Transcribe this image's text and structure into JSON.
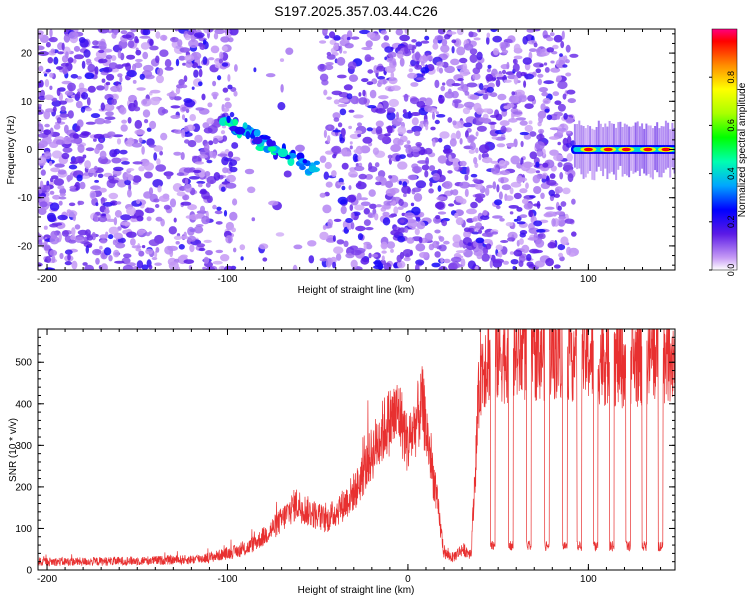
{
  "figure": {
    "title": "S197.2025.357.03.44.C26"
  },
  "chart_data": [
    {
      "type": "heatmap",
      "title": "S197.2025.357.03.44.C26",
      "xlabel": "Height of straight line (km)",
      "ylabel": "Frequency (Hz)",
      "xlim": [
        -205,
        148
      ],
      "ylim": [
        -25,
        25
      ],
      "xticks": [
        -200,
        -100,
        0,
        100
      ],
      "xtick_labels": [
        "-200",
        "-100",
        "0",
        "100"
      ],
      "yticks": [
        -20,
        -10,
        0,
        10,
        20
      ],
      "ytick_labels": [
        "-20",
        "-10",
        "0",
        "10",
        "20"
      ],
      "colorbar": {
        "label": "Normalized spectral amplitude",
        "range": [
          0,
          1
        ],
        "ticks": [
          0.0,
          0.2,
          0.4,
          0.6,
          0.8
        ],
        "tick_labels": [
          "0.0",
          "0.2",
          "0.4",
          "0.6",
          "0.8"
        ]
      },
      "features": [
        {
          "name": "background noise speckle",
          "x_range": [
            -205,
            92
          ],
          "y_range": [
            -25,
            25
          ],
          "amplitude": 0.15
        },
        {
          "name": "dispersive trace",
          "x_start": -103,
          "y_start": 6,
          "x_end": -52,
          "y_end": -4,
          "amplitude": 0.4
        },
        {
          "name": "narrowband line",
          "x_range": [
            92,
            148
          ],
          "y": 0,
          "amplitude": 0.9
        }
      ]
    },
    {
      "type": "line",
      "xlabel": "Height of straight line (km)",
      "ylabel": "SNR (10 * v/v)",
      "xlim": [
        -205,
        148
      ],
      "ylim": [
        0,
        580
      ],
      "xticks": [
        -200,
        -100,
        0,
        100
      ],
      "xtick_labels": [
        "-200",
        "-100",
        "0",
        "100"
      ],
      "yticks": [
        0,
        100,
        200,
        300,
        400,
        500
      ],
      "ytick_labels": [
        "0",
        "100",
        "200",
        "300",
        "400",
        "500"
      ],
      "series": [
        {
          "name": "SNR",
          "color": "#e83030",
          "x": [
            -205,
            -180,
            -150,
            -120,
            -110,
            -100,
            -90,
            -80,
            -70,
            -62,
            -55,
            -45,
            -35,
            -28,
            -20,
            -12,
            -5,
            0,
            8,
            15,
            20,
            25,
            30,
            35,
            40,
            45,
            60,
            80,
            100,
            120,
            140,
            148
          ],
          "y": [
            20,
            20,
            22,
            25,
            30,
            40,
            50,
            80,
            120,
            160,
            140,
            120,
            160,
            200,
            280,
            350,
            380,
            300,
            400,
            200,
            40,
            30,
            50,
            40,
            480,
            520,
            520,
            530,
            520,
            500,
            520,
            520
          ]
        }
      ],
      "dropouts_km": [
        47,
        57,
        67,
        77,
        87,
        95,
        104,
        113,
        122,
        131,
        140
      ]
    }
  ]
}
